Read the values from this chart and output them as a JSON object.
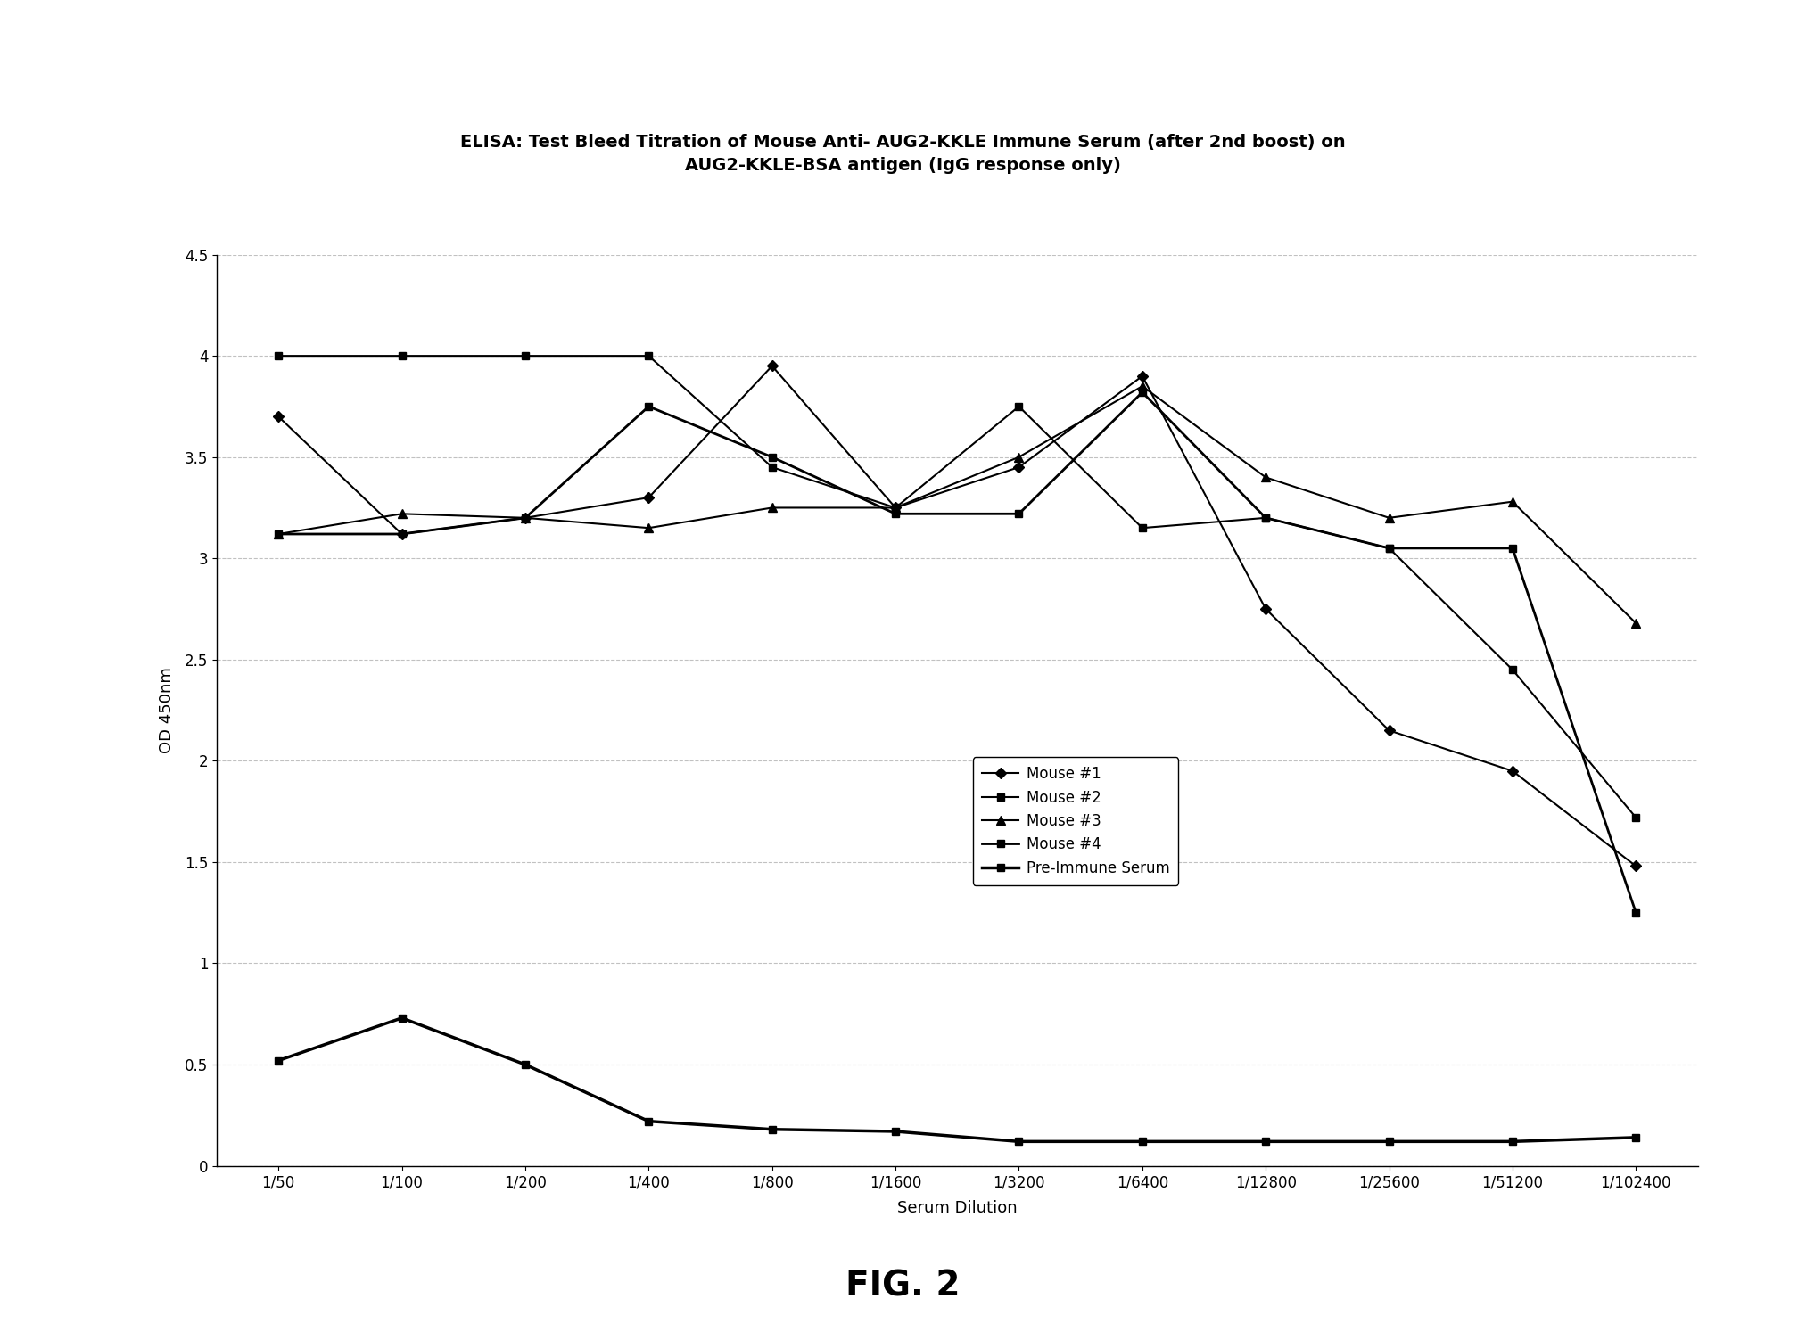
{
  "title_line1": "ELISA: Test Bleed Titration of Mouse Anti- AUG2-KKLE Immune Serum (after 2nd boost) on",
  "title_line2": "AUG2-KKLE-BSA antigen (IgG response only)",
  "xlabel": "Serum Dilution",
  "ylabel": "OD 450nm",
  "x_labels": [
    "1/50",
    "1/100",
    "1/200",
    "1/400",
    "1/800",
    "1/1600",
    "1/3200",
    "1/6400",
    "1/12800",
    "1/25600",
    "1/51200",
    "1/102400"
  ],
  "ylim": [
    0,
    4.5
  ],
  "yticks": [
    0,
    0.5,
    1.0,
    1.5,
    2.0,
    2.5,
    3.0,
    3.5,
    4.0,
    4.5
  ],
  "series": [
    {
      "label": "Mouse #1",
      "marker": "D",
      "markersize": 6,
      "linewidth": 1.5,
      "values": [
        3.7,
        3.12,
        3.2,
        3.3,
        3.95,
        3.25,
        3.45,
        3.9,
        2.75,
        2.15,
        1.95,
        1.48
      ]
    },
    {
      "label": "Mouse #2",
      "marker": "s",
      "markersize": 6,
      "linewidth": 1.5,
      "values": [
        4.0,
        4.0,
        4.0,
        4.0,
        3.45,
        3.25,
        3.75,
        3.15,
        3.2,
        3.05,
        2.45,
        1.72
      ]
    },
    {
      "label": "Mouse #3",
      "marker": "^",
      "markersize": 7,
      "linewidth": 1.5,
      "values": [
        3.12,
        3.22,
        3.2,
        3.15,
        3.25,
        3.25,
        3.5,
        3.85,
        3.4,
        3.2,
        3.28,
        2.68
      ]
    },
    {
      "label": "Mouse #4",
      "marker": "s",
      "markersize": 6,
      "linewidth": 2.0,
      "values": [
        3.12,
        3.12,
        3.2,
        3.75,
        3.5,
        3.22,
        3.22,
        3.82,
        3.2,
        3.05,
        3.05,
        1.25
      ]
    },
    {
      "label": "Pre-Immune Serum",
      "marker": "s",
      "markersize": 6,
      "linewidth": 2.5,
      "values": [
        0.52,
        0.73,
        0.5,
        0.22,
        0.18,
        0.17,
        0.12,
        0.12,
        0.12,
        0.12,
        0.12,
        0.14
      ]
    }
  ],
  "fig_label": "FIG. 2",
  "background_color": "#ffffff",
  "grid_color": "#999999",
  "title_fontsize": 14,
  "axis_label_fontsize": 13,
  "tick_fontsize": 12,
  "legend_fontsize": 12,
  "fig_label_fontsize": 28
}
